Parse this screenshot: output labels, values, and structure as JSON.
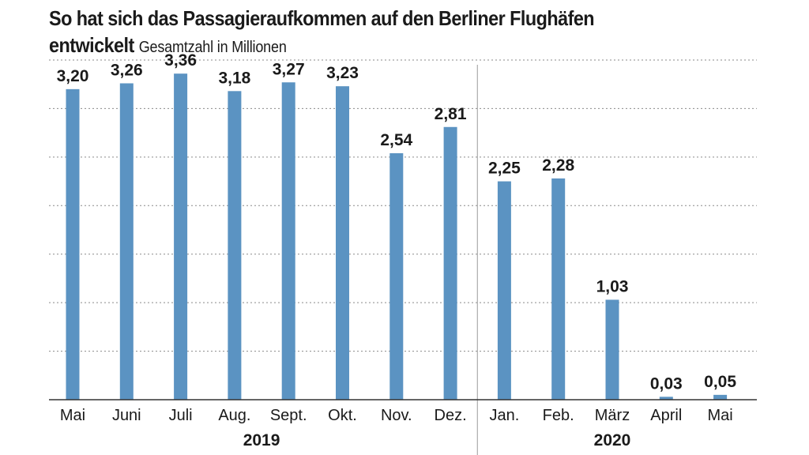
{
  "chart_data": {
    "type": "bar",
    "title_line1": "So hat sich das Passagieraufkommen auf den Berliner Flughäfen",
    "title_line2": "entwickelt",
    "subtitle": "Gesamtzahl in Millionen",
    "categories": [
      "Mai",
      "Juni",
      "Juli",
      "Aug.",
      "Sept.",
      "Okt.",
      "Nov.",
      "Dez.",
      "Jan.",
      "Feb.",
      "März",
      "April",
      "Mai"
    ],
    "values": [
      3.2,
      3.26,
      3.36,
      3.18,
      3.27,
      3.23,
      2.54,
      2.81,
      2.25,
      2.28,
      1.03,
      0.03,
      0.05
    ],
    "value_labels": [
      "3,20",
      "3,26",
      "3,36",
      "3,18",
      "3,27",
      "3,23",
      "2,54",
      "2,81",
      "2,25",
      "2,28",
      "1,03",
      "0,03",
      "0,05"
    ],
    "groups": [
      {
        "label": "2019",
        "from": 0,
        "to": 7
      },
      {
        "label": "2020",
        "from": 8,
        "to": 12
      }
    ],
    "ylim": [
      0,
      3.5
    ],
    "y_gridlines": [
      0.5,
      1.0,
      1.5,
      2.0,
      2.5,
      3.0,
      3.5
    ],
    "grid": true,
    "bar_color": "#5b93c2"
  }
}
